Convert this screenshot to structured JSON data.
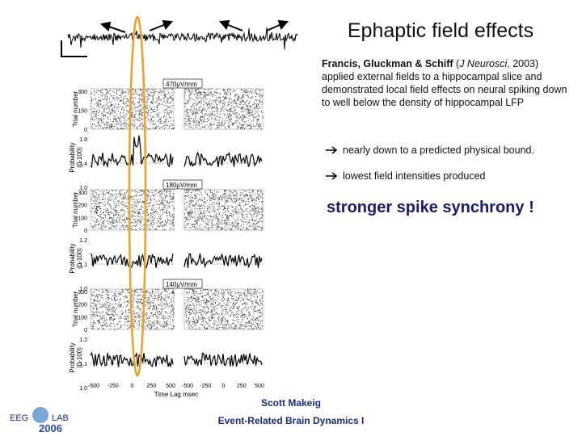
{
  "title": "Ephaptic field effects",
  "citation": {
    "authors": "Francis, Gluckman & Schiff",
    "open": "(",
    "journal": "J Neurosci",
    "close": ", 2003)",
    "body": "applied external fields to a hippocampal slice and demonstrated local field effects on neural spiking down to well below the density of hippocampal LFP"
  },
  "bullets": [
    "nearly down to a predicted physical bound.",
    "lowest field intensities produced"
  ],
  "highlight": "stronger spike synchrony !",
  "footer": {
    "author": "Scott Makeig",
    "course": "Event-Related Brain Dynamics I"
  },
  "logo": {
    "left": "EEG",
    "right": "LAB",
    "year": "2006"
  },
  "figure": {
    "groups": [
      {
        "field": "470μV/mm",
        "trial_ticks": [
          "300",
          "150",
          "0"
        ],
        "prob_ticks": [
          "1.8",
          "1.4",
          "1.0"
        ]
      },
      {
        "field": "180μV/mm",
        "trial_ticks": [
          "300",
          "200",
          "100",
          "0"
        ],
        "prob_ticks": [
          "1.2",
          "1.1",
          "1.0"
        ]
      },
      {
        "field": "140μV/mm",
        "trial_ticks": [
          "300",
          "200",
          "100",
          "0"
        ],
        "prob_ticks": [
          "1.2",
          "1.1",
          "1.0"
        ]
      }
    ],
    "trial_label": "Trial number",
    "prob_label": [
      "Probability",
      "(0-100)"
    ],
    "x_ticks": [
      "-500",
      "-250",
      "0",
      "250",
      "500"
    ],
    "x_label": "Time Lag msec"
  }
}
